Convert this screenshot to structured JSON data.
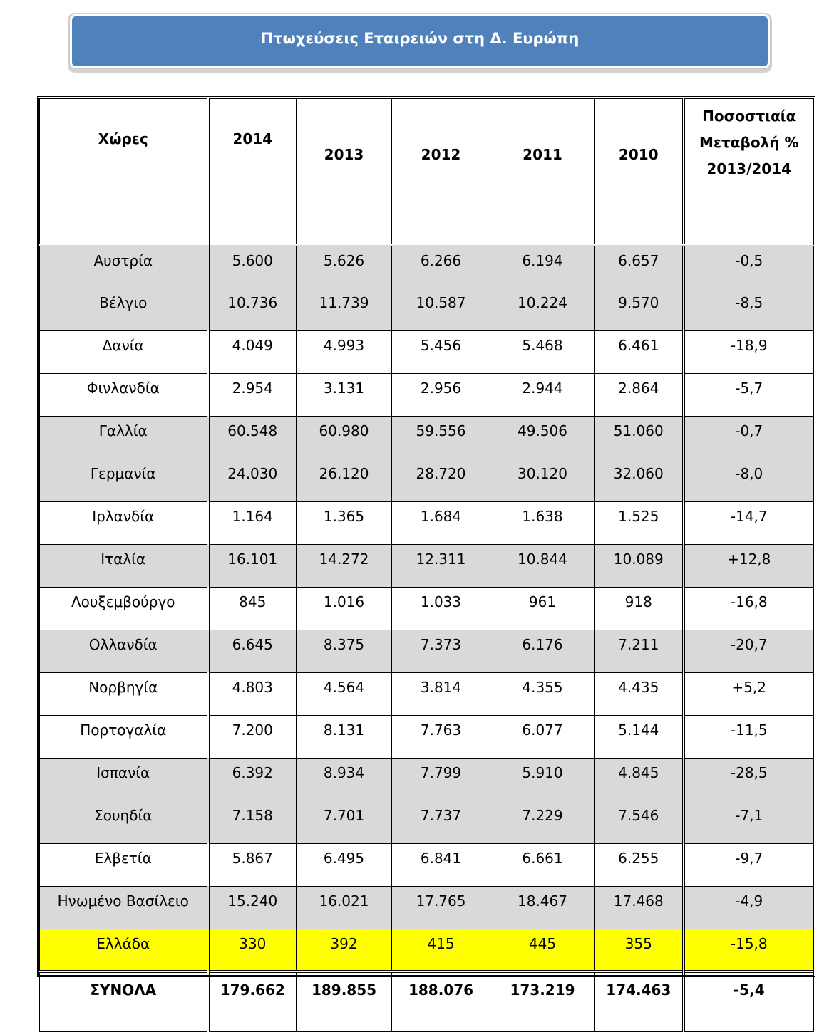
{
  "title": "Πτωχεύσεις Εταιρειών στη Δ. Ευρώπη",
  "headers": {
    "country": "Χώρες",
    "y2014": "2014",
    "y2013": "2013",
    "y2012": "2012",
    "y2011": "2011",
    "y2010": "2010",
    "pct_line1": "Ποσοστιαία",
    "pct_line2": "Μεταβολή %",
    "pct_line3": "2013/2014"
  },
  "rows": [
    {
      "country": "Αυστρία",
      "v2014": "5.600",
      "v2013": "5.626",
      "v2012": "6.266",
      "v2011": "6.194",
      "v2010": "6.657",
      "pct": "-0,5",
      "shade": true
    },
    {
      "country": "Βέλγιο",
      "v2014": "10.736",
      "v2013": "11.739",
      "v2012": "10.587",
      "v2011": "10.224",
      "v2010": "9.570",
      "pct": "-8,5",
      "shade": true
    },
    {
      "country": "Δανία",
      "v2014": "4.049",
      "v2013": "4.993",
      "v2012": "5.456",
      "v2011": "5.468",
      "v2010": "6.461",
      "pct": "-18,9",
      "shade": false
    },
    {
      "country": "Φινλανδία",
      "v2014": "2.954",
      "v2013": "3.131",
      "v2012": "2.956",
      "v2011": "2.944",
      "v2010": "2.864",
      "pct": "-5,7",
      "shade": false
    },
    {
      "country": "Γαλλία",
      "v2014": "60.548",
      "v2013": "60.980",
      "v2012": "59.556",
      "v2011": "49.506",
      "v2010": "51.060",
      "pct": "-0,7",
      "shade": true
    },
    {
      "country": "Γερμανία",
      "v2014": "24.030",
      "v2013": "26.120",
      "v2012": "28.720",
      "v2011": "30.120",
      "v2010": "32.060",
      "pct": "-8,0",
      "shade": true
    },
    {
      "country": "Ιρλανδία",
      "v2014": "1.164",
      "v2013": "1.365",
      "v2012": "1.684",
      "v2011": "1.638",
      "v2010": "1.525",
      "pct": "-14,7",
      "shade": false
    },
    {
      "country": "Ιταλία",
      "v2014": "16.101",
      "v2013": "14.272",
      "v2012": "12.311",
      "v2011": "10.844",
      "v2010": "10.089",
      "pct": "+12,8",
      "shade": true
    },
    {
      "country": "Λουξεμβούργο",
      "v2014": "845",
      "v2013": "1.016",
      "v2012": "1.033",
      "v2011": "961",
      "v2010": "918",
      "pct": "-16,8",
      "shade": false
    },
    {
      "country": "Ολλανδία",
      "v2014": "6.645",
      "v2013": "8.375",
      "v2012": "7.373",
      "v2011": "6.176",
      "v2010": "7.211",
      "pct": "-20,7",
      "shade": true
    },
    {
      "country": "Νορβηγία",
      "v2014": "4.803",
      "v2013": "4.564",
      "v2012": "3.814",
      "v2011": "4.355",
      "v2010": "4.435",
      "pct": "+5,2",
      "shade": false
    },
    {
      "country": "Πορτογαλία",
      "v2014": "7.200",
      "v2013": "8.131",
      "v2012": "7.763",
      "v2011": "6.077",
      "v2010": "5.144",
      "pct": "-11,5",
      "shade": false
    },
    {
      "country": "Ισπανία",
      "v2014": "6.392",
      "v2013": "8.934",
      "v2012": "7.799",
      "v2011": "5.910",
      "v2010": "4.845",
      "pct": "-28,5",
      "shade": true
    },
    {
      "country": "Σουηδία",
      "v2014": "7.158",
      "v2013": "7.701",
      "v2012": "7.737",
      "v2011": "7.229",
      "v2010": "7.546",
      "pct": "-7,1",
      "shade": true
    },
    {
      "country": "Ελβετία",
      "v2014": "5.867",
      "v2013": "6.495",
      "v2012": "6.841",
      "v2011": "6.661",
      "v2010": "6.255",
      "pct": "-9,7",
      "shade": false
    },
    {
      "country": "Ηνωμένο Βασίλειο",
      "v2014": "15.240",
      "v2013": "16.021",
      "v2012": "17.765",
      "v2011": "18.467",
      "v2010": "17.468",
      "pct": "-4,9",
      "shade": true
    },
    {
      "country": "Ελλάδα",
      "v2014": "330",
      "v2013": "392",
      "v2012": "415",
      "v2011": "445",
      "v2010": "355",
      "pct": "-15,8",
      "highlight": true
    }
  ],
  "totals": {
    "label": "ΣΥΝΟΛΑ",
    "v2014": "179.662",
    "v2013": "189.855",
    "v2012": "188.076",
    "v2011": "173.219",
    "v2010": "174.463",
    "pct": "-5,4"
  },
  "colors": {
    "title_bg": "#4f81bd",
    "row_shade": "#d9d9d9",
    "greece_highlight": "#ffff00"
  }
}
